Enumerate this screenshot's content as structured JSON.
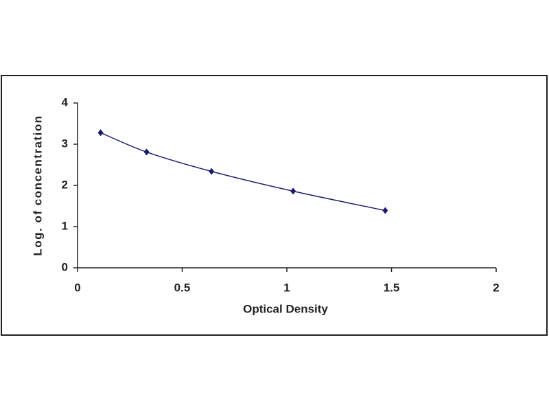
{
  "chart_data": {
    "type": "line",
    "x_label": "Optical Density",
    "y_label": "Log. of concentration",
    "x": [
      0.11,
      0.33,
      0.64,
      1.03,
      1.47
    ],
    "values": [
      3.28,
      2.81,
      2.34,
      1.86,
      1.39
    ],
    "color": "#1a1a6e",
    "xlim": [
      0,
      2
    ],
    "xticks": [
      0,
      0.5,
      1,
      1.5,
      2
    ],
    "ylim": [
      0,
      4
    ],
    "yticks": [
      0,
      1,
      2,
      3,
      4
    ],
    "grid": false
  }
}
